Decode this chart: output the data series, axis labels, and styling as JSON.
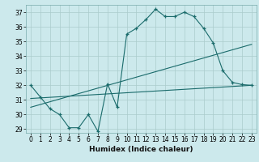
{
  "xlabel": "Humidex (Indice chaleur)",
  "bg_color": "#cce9ec",
  "grid_color": "#aacccc",
  "line_color": "#1a6b6b",
  "xlim": [
    -0.5,
    23.5
  ],
  "ylim": [
    28.75,
    37.5
  ],
  "yticks": [
    29,
    30,
    31,
    32,
    33,
    34,
    35,
    36,
    37
  ],
  "xticks": [
    0,
    1,
    2,
    3,
    4,
    5,
    6,
    7,
    8,
    9,
    10,
    11,
    12,
    13,
    14,
    15,
    16,
    17,
    18,
    19,
    20,
    21,
    22,
    23
  ],
  "line1_x": [
    0,
    1,
    2,
    3,
    4,
    5,
    6,
    7,
    8,
    9,
    10,
    11,
    12,
    13,
    14,
    15,
    16,
    17,
    18,
    19,
    20,
    21,
    22,
    23
  ],
  "line1_y": [
    32.0,
    31.2,
    30.4,
    30.0,
    29.1,
    29.1,
    30.0,
    28.85,
    32.1,
    30.5,
    35.5,
    35.9,
    36.5,
    37.2,
    36.7,
    36.7,
    37.0,
    36.7,
    35.9,
    34.9,
    33.0,
    32.2,
    32.05,
    32.0
  ],
  "line2_x": [
    0,
    23
  ],
  "line2_y": [
    31.1,
    32.0
  ],
  "line3_x": [
    0,
    23
  ],
  "line3_y": [
    30.5,
    34.8
  ]
}
